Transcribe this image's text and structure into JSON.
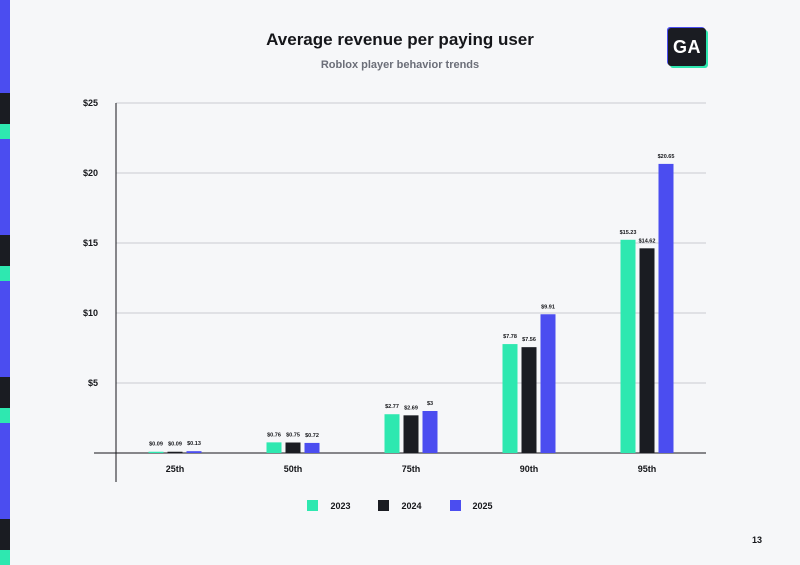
{
  "header": {
    "title": "Average revenue per paying user",
    "subtitle": "Roblox player behavior trends",
    "logo_text": "GA"
  },
  "colors": {
    "series_2023": "#2ee8b0",
    "series_2024": "#1a1c22",
    "series_2025": "#4b4df0",
    "stripe_blue": "#4b4df0",
    "stripe_green": "#2ee8b0",
    "stripe_dark": "#1a1c22"
  },
  "chart_data": {
    "type": "bar",
    "title": "Average revenue per paying user",
    "subtitle": "Roblox player behavior trends",
    "categories": [
      "25th",
      "50th",
      "75th",
      "90th",
      "95th"
    ],
    "series": [
      {
        "name": "2023",
        "values": [
          0.09,
          0.76,
          2.77,
          7.78,
          15.23
        ],
        "labels": [
          "$0.09",
          "$0.76",
          "$2.77",
          "$7.78",
          "$15.23"
        ],
        "color": "#2ee8b0"
      },
      {
        "name": "2024",
        "values": [
          0.09,
          0.75,
          2.69,
          7.56,
          14.62
        ],
        "labels": [
          "$0.09",
          "$0.75",
          "$2.69",
          "$7.56",
          "$14.62"
        ],
        "color": "#1a1c22"
      },
      {
        "name": "2025",
        "values": [
          0.13,
          0.72,
          3,
          9.91,
          20.65
        ],
        "labels": [
          "$0.13",
          "$0.72",
          "$3",
          "$9.91",
          "$20.65"
        ],
        "color": "#4b4df0"
      }
    ],
    "yticks": [
      5,
      10,
      15,
      20,
      25
    ],
    "ytick_labels": [
      "$5",
      "$10",
      "$15",
      "$20",
      "$25"
    ],
    "ylim": [
      0,
      25
    ],
    "xlabel": "",
    "ylabel": "",
    "grid": true,
    "legend_position": "bottom-center"
  },
  "legend": {
    "items": [
      {
        "label": "2023",
        "color": "#2ee8b0"
      },
      {
        "label": "2024",
        "color": "#1a1c22"
      },
      {
        "label": "2025",
        "color": "#4b4df0"
      }
    ]
  },
  "footer": {
    "page_number": "13"
  }
}
